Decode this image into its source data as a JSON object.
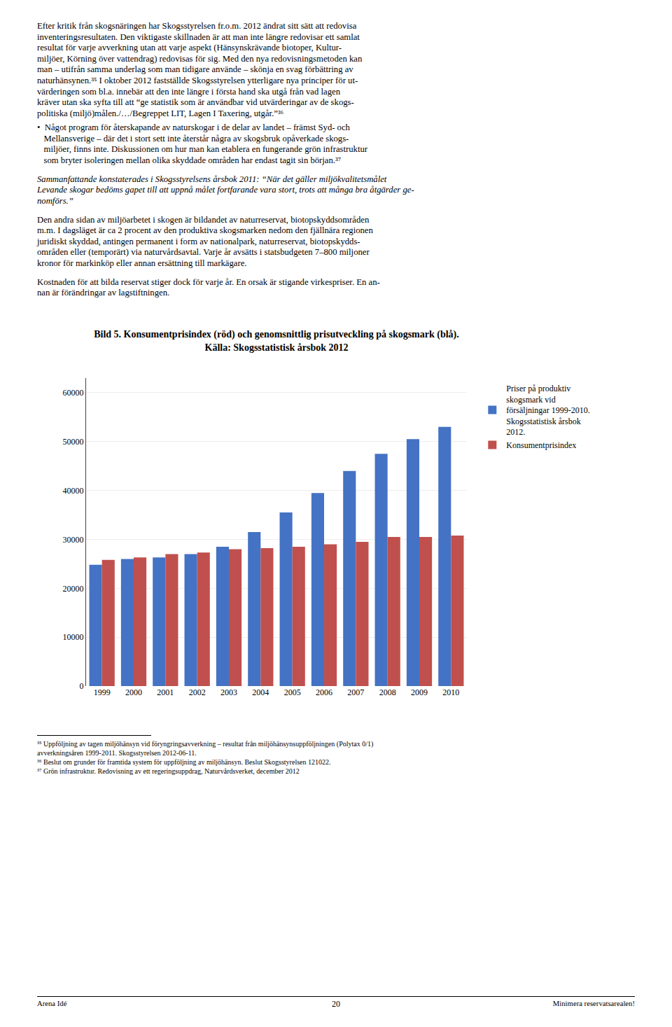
{
  "chart_data": {
    "type": "bar",
    "title": "Bild 5. Konsumentprisindex (röd) och genomsnittlig prisutveckling på skogsmark (blå).",
    "subtitle": "Källa: Skogsstatistisk årsbok 2012",
    "categories": [
      "1999",
      "2000",
      "2001",
      "2002",
      "2003",
      "2004",
      "2005",
      "2006",
      "2007",
      "2008",
      "2009",
      "2010"
    ],
    "series": [
      {
        "name": "Priser på produktiv\nskogsmark vid\nförsäljningar 1999-2010.\nSkogsstatistisk årsbok\n2012.",
        "color": "#4472C4",
        "values": [
          24800,
          26000,
          26300,
          27000,
          28500,
          31500,
          35500,
          39500,
          44000,
          47500,
          50500,
          53000
        ]
      },
      {
        "name": "Konsumentprisindex",
        "color": "#C0504D",
        "values": [
          25800,
          26300,
          27000,
          27300,
          28000,
          28200,
          28500,
          29000,
          29500,
          30500,
          30500,
          30800
        ]
      }
    ],
    "ylim": [
      0,
      63000
    ],
    "yticks": [
      0,
      10000,
      20000,
      30000,
      40000,
      50000,
      60000
    ],
    "grid": true,
    "legend": "right"
  },
  "text": {
    "paragraphs": [
      [
        "Efter kritik från skogsnäringen har Skogsstyrelsen fr.o.m. 2012 ändrat sitt sätt att redovisa",
        "inventeringsresultaten. Den viktigaste skillnaden är att man inte längre redovisar ett samlat",
        "resultat för varje avverkning utan att varje aspekt (Hänsynskrävande biotoper, Kultur-",
        "miljöer, Körning över vattendrag) redovisas för sig. Med den nya redovisningsmetoden kan",
        "man – utifrån samma underlag som man tidigare använde – skönja en svag förbättring av",
        "naturhänsynen.³⁵ I oktober 2012 fastställde Skogsstyrelsen ytterligare nya principer för ut-",
        "värderingen som bl.a. innebär att den inte längre i första hand ska utgå från vad lagen",
        "kräver utan ska syfta till att “ge statistik som är användbar vid utvärderingar av de skogs-",
        "politiska (miljö)målen./…/Begreppet LIT, Lagen I Taxering, utgår.”³⁶"
      ],
      [
        "•  Något program för återskapande av naturskogar i de delar av landet – främst Syd- och",
        "   Mellansverige – där det i stort sett inte återstår några av skogsbruk opåverkade skogs-",
        "   miljöer, finns inte. Diskussionen om hur man kan etablera en fungerande grön infrastruktur",
        "   som bryter isoleringen mellan olika skyddade områden har endast tagit sin början.³⁷"
      ],
      [
        "Sammanfattande konstaterades i Skogsstyrelsens årsbok 2011: “När det gäller miljökvalitetsmålet",
        "Levande skogar bedöms gapet till att uppnå målet fortfarande vara stort, trots att många bra åtgärder ge-",
        "nomförs.”"
      ],
      [
        "Den andra sidan av miljöarbetet i skogen är bildandet av naturreservat, biotopskyddsområden",
        "m.m. I dagsläget är ca 2 procent av den produktiva skogsmarken nedom den fjällnära regionen",
        "juridiskt skyddad, antingen permanent i form av nationalpark, naturreservat, biotopskydds-",
        "områden eller (temporärt) via naturvårdsavtal. Varje år avsätts i statsbudgeten 7–800 miljoner",
        "kronor för markinköp eller annan ersättning till markägare."
      ],
      [
        "Kostnaden för att bilda reservat stiger dock för varje år. En orsak är stigande virkespriser. En an-",
        "nan är förändringar av lagstiftningen."
      ]
    ],
    "footnotes": [
      "³⁵ Uppföljning av tagen miljöhänsyn vid föryngringsavverkning – resultat från miljöhänsynsuppföljningen (Polytax 0/1)",
      "avverkningsåren 1999-2011. Skogsstyrelsen 2012-06-11.",
      "³⁶ Beslut om grunder för framtida system för uppföljning av miljöhänsyn. Beslut Skogsstyrelsen 121022.",
      "³⁷ Grön infrastruktur. Redovisning av ett regeringsuppdrag, Naturvårdsverket, december 2012"
    ],
    "footer": [
      "Arena Idé",
      "20",
      "Minimera reservatsarealen!"
    ]
  }
}
